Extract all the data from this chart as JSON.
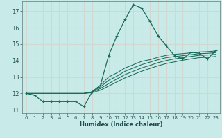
{
  "xlabel": "Humidex (Indice chaleur)",
  "bg_color": "#c8eae8",
  "grid_color": "#d0d8d0",
  "line_color": "#1a6b5a",
  "xlim": [
    -0.5,
    23.5
  ],
  "ylim": [
    10.8,
    17.6
  ],
  "yticks": [
    11,
    12,
    13,
    14,
    15,
    16,
    17
  ],
  "xticks": [
    0,
    1,
    2,
    3,
    4,
    5,
    6,
    7,
    8,
    9,
    10,
    11,
    12,
    13,
    14,
    15,
    16,
    17,
    18,
    19,
    20,
    21,
    22,
    23
  ],
  "lines": [
    {
      "x": [
        0,
        1,
        2,
        3,
        4,
        5,
        6,
        7,
        8,
        9,
        10,
        11,
        12,
        13,
        14,
        15,
        16,
        17,
        18,
        19,
        20,
        21,
        22,
        23
      ],
      "y": [
        12.0,
        11.9,
        11.5,
        11.5,
        11.5,
        11.5,
        11.5,
        11.2,
        12.1,
        12.5,
        14.3,
        15.5,
        16.5,
        17.4,
        17.2,
        16.4,
        15.5,
        14.9,
        14.3,
        14.1,
        14.5,
        14.45,
        14.1,
        14.6
      ],
      "marker": true
    },
    {
      "x": [
        0,
        7,
        8,
        9,
        10,
        11,
        12,
        13,
        14,
        15,
        16,
        17,
        18,
        19,
        20,
        21,
        22,
        23
      ],
      "y": [
        12.0,
        12.0,
        12.1,
        12.5,
        13.0,
        13.25,
        13.55,
        13.75,
        13.95,
        14.05,
        14.2,
        14.32,
        14.38,
        14.42,
        14.47,
        14.52,
        14.54,
        14.58
      ],
      "marker": false
    },
    {
      "x": [
        0,
        7,
        8,
        9,
        10,
        11,
        12,
        13,
        14,
        15,
        16,
        17,
        18,
        19,
        20,
        21,
        22,
        23
      ],
      "y": [
        12.0,
        12.0,
        12.1,
        12.4,
        12.8,
        13.05,
        13.35,
        13.55,
        13.75,
        13.9,
        14.05,
        14.18,
        14.24,
        14.3,
        14.36,
        14.42,
        14.44,
        14.48
      ],
      "marker": false
    },
    {
      "x": [
        0,
        7,
        8,
        9,
        10,
        11,
        12,
        13,
        14,
        15,
        16,
        17,
        18,
        19,
        20,
        21,
        22,
        23
      ],
      "y": [
        12.0,
        12.0,
        12.1,
        12.3,
        12.6,
        12.88,
        13.15,
        13.35,
        13.55,
        13.7,
        13.87,
        14.0,
        14.1,
        14.18,
        14.25,
        14.32,
        14.34,
        14.38
      ],
      "marker": false
    },
    {
      "x": [
        0,
        7,
        8,
        9,
        10,
        11,
        12,
        13,
        14,
        15,
        16,
        17,
        18,
        19,
        20,
        21,
        22,
        23
      ],
      "y": [
        12.0,
        12.0,
        12.05,
        12.2,
        12.45,
        12.7,
        12.95,
        13.15,
        13.35,
        13.52,
        13.68,
        13.82,
        13.92,
        14.02,
        14.1,
        14.18,
        14.2,
        14.25
      ],
      "marker": false
    }
  ]
}
